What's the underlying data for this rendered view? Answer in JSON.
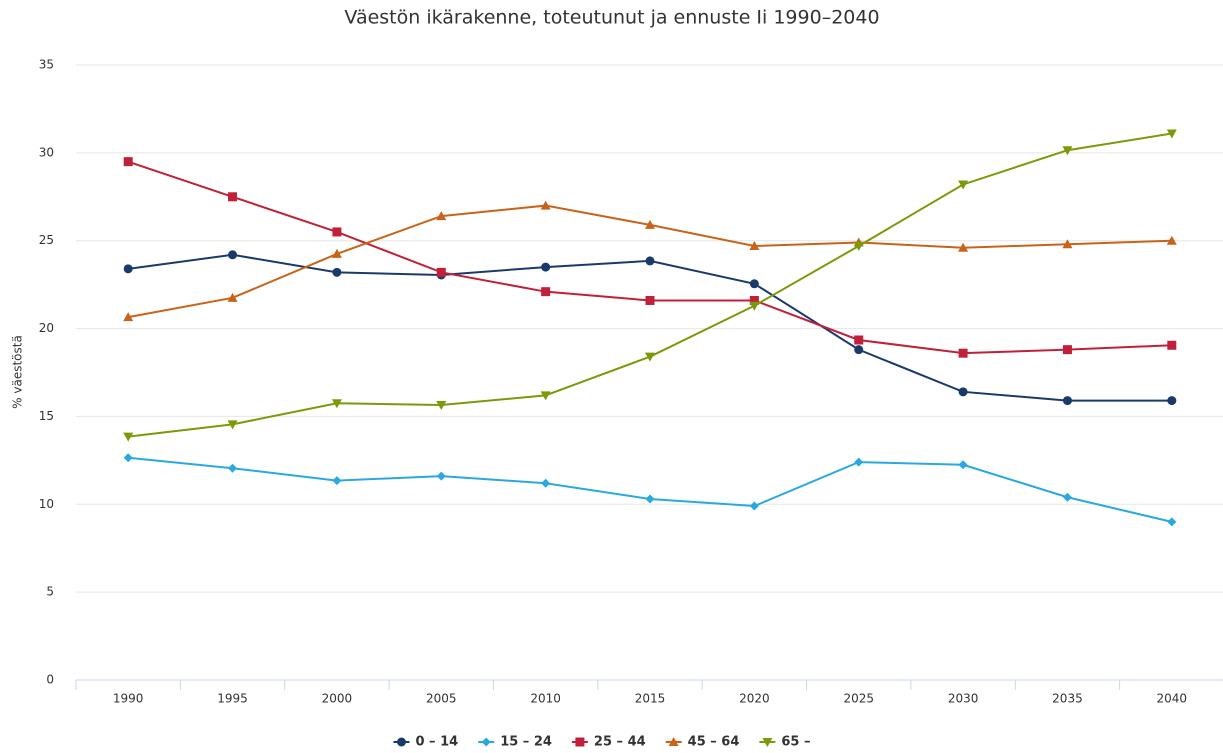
{
  "chart_data": {
    "type": "line",
    "title": "Väestön ikärakenne, toteutunut ja ennuste Ii 1990–2040",
    "y_label": "% väestöstä",
    "categories": [
      "1990",
      "1995",
      "2000",
      "2005",
      "2010",
      "2015",
      "2020",
      "2025",
      "2030",
      "2035",
      "2040"
    ],
    "ylim": [
      0,
      35
    ],
    "yticks": [
      0,
      5,
      10,
      15,
      20,
      25,
      30,
      35
    ],
    "grid": true,
    "legend": "bottom",
    "series": [
      {
        "name": "0 – 14",
        "color": "#1a3a6b",
        "marker": "circle",
        "values": [
          23.4,
          24.2,
          23.2,
          23.05,
          23.5,
          23.85,
          22.55,
          18.8,
          16.4,
          15.9,
          15.9
        ]
      },
      {
        "name": "15 – 24",
        "color": "#29a9e0",
        "marker": "diamond",
        "values": [
          12.65,
          12.05,
          11.35,
          11.6,
          11.2,
          10.3,
          9.9,
          12.4,
          12.25,
          10.4,
          9.0
        ]
      },
      {
        "name": "25 – 44",
        "color": "#c0203a",
        "marker": "square",
        "values": [
          29.5,
          27.5,
          25.5,
          23.2,
          22.1,
          21.6,
          21.6,
          19.35,
          18.6,
          18.8,
          19.05
        ]
      },
      {
        "name": "45 – 64",
        "color": "#c8641a",
        "marker": "triangle",
        "values": [
          20.65,
          21.75,
          24.25,
          26.4,
          27.0,
          25.9,
          24.7,
          24.9,
          24.6,
          24.8,
          25.0
        ]
      },
      {
        "name": "65 –",
        "color": "#7a9a0a",
        "marker": "triangle-down",
        "values": [
          13.85,
          14.55,
          15.75,
          15.65,
          16.2,
          18.4,
          21.3,
          24.7,
          28.2,
          30.15,
          31.1
        ]
      }
    ]
  }
}
